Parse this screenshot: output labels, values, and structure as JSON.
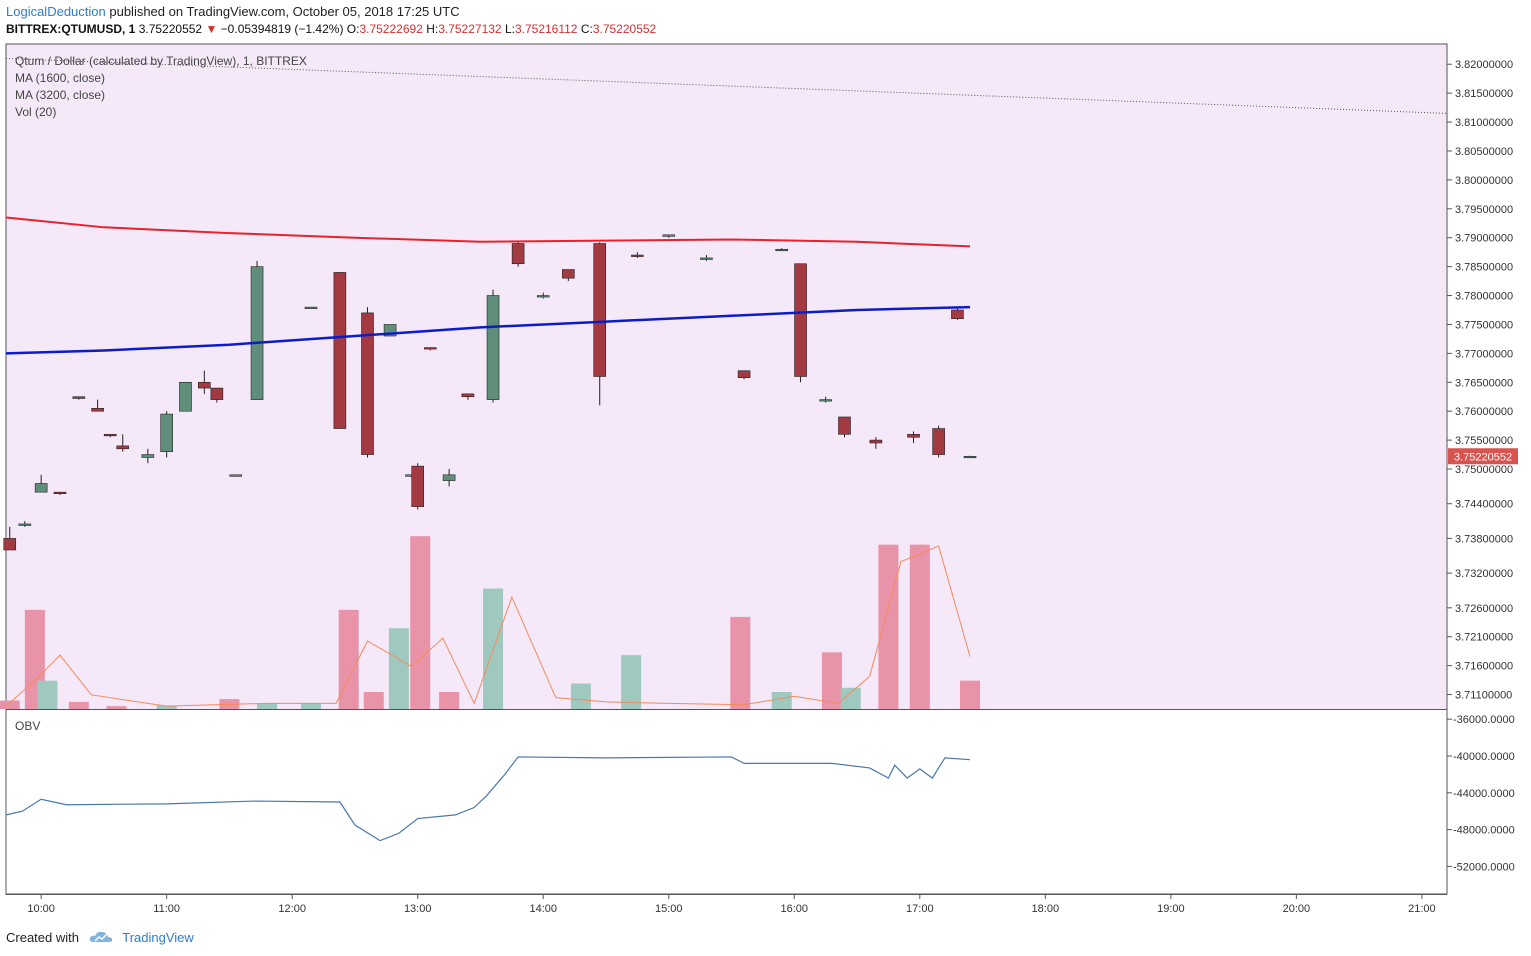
{
  "header": {
    "author": "LogicalDeduction",
    "published_text": "published on TradingView.com, October 05, 2018 17:25 UTC",
    "symbol": "BITTREX:QTUMUSD, 1",
    "last": "3.75220552",
    "change_arrow": "▼",
    "change": "−0.05394819 (−1.42%)",
    "o_label": "O:",
    "o_value": "3.75222692",
    "h_label": "H:",
    "h_value": "3.75227132",
    "l_label": "L:",
    "l_value": "3.75216112",
    "c_label": "C:",
    "c_value": "3.75220552"
  },
  "legend": {
    "title": "Qtum / Dollar (calculated by TradingView), 1, BITTREX",
    "ma1": "MA (1600, close)",
    "ma2": "MA (3200, close)",
    "vol": "Vol (20)",
    "obv": "OBV"
  },
  "footer": {
    "created_with": "Created with",
    "brand": "TradingView"
  },
  "colors": {
    "background_main": "#f4e8f9",
    "up_candle": "#5f8f7a",
    "down_candle": "#a33a42",
    "ma1600": "#0d1cc9",
    "ma3200": "#e8222a",
    "vol_up": "#9fc9be",
    "vol_down": "#e893a8",
    "vol_ma": "#f58a5c",
    "obv_line": "#4a77ad",
    "last_price_tag": "#d9534f"
  },
  "chart_data": {
    "type": "candlestick",
    "price_axis": {
      "ticks": [
        "3.82000000",
        "3.81500000",
        "3.81000000",
        "3.80500000",
        "3.80000000",
        "3.79500000",
        "3.79000000",
        "3.78500000",
        "3.78000000",
        "3.77500000",
        "3.77000000",
        "3.76500000",
        "3.76000000",
        "3.75500000",
        "3.75000000",
        "3.74400000",
        "3.73800000",
        "3.73200000",
        "3.72600000",
        "3.72100000",
        "3.71600000",
        "3.71100000"
      ],
      "last_price_label": "3.75220552",
      "ylim": [
        3.7085,
        3.8235
      ]
    },
    "obv_axis": {
      "ticks": [
        "-36000.0000",
        "-40000.0000",
        "-44000.0000",
        "-48000.0000",
        "-52000.0000"
      ],
      "ylim": [
        -55000,
        -35000
      ]
    },
    "time_axis": {
      "ticks": [
        "10:00",
        "11:00",
        "12:00",
        "13:00",
        "14:00",
        "15:00",
        "16:00",
        "17:00",
        "18:00",
        "19:00",
        "20:00",
        "21:00"
      ],
      "range_hours": [
        9.72,
        21.2
      ]
    },
    "candles": [
      {
        "t": 9.75,
        "o": 3.738,
        "h": 3.74,
        "l": 3.736,
        "c": 3.736
      },
      {
        "t": 9.87,
        "o": 3.7405,
        "h": 3.741,
        "l": 3.74,
        "c": 3.7405
      },
      {
        "t": 10.0,
        "o": 3.746,
        "h": 3.749,
        "l": 3.746,
        "c": 3.7475
      },
      {
        "t": 10.15,
        "o": 3.746,
        "h": 3.746,
        "l": 3.7455,
        "c": 3.7458
      },
      {
        "t": 10.3,
        "o": 3.7625,
        "h": 3.7625,
        "l": 3.762,
        "c": 3.7622
      },
      {
        "t": 10.45,
        "o": 3.7605,
        "h": 3.762,
        "l": 3.76,
        "c": 3.76
      },
      {
        "t": 10.55,
        "o": 3.756,
        "h": 3.756,
        "l": 3.7555,
        "c": 3.7558
      },
      {
        "t": 10.65,
        "o": 3.754,
        "h": 3.756,
        "l": 3.753,
        "c": 3.7535
      },
      {
        "t": 10.85,
        "o": 3.752,
        "h": 3.7535,
        "l": 3.751,
        "c": 3.7525
      },
      {
        "t": 11.0,
        "o": 3.753,
        "h": 3.76,
        "l": 3.752,
        "c": 3.7595
      },
      {
        "t": 11.15,
        "o": 3.76,
        "h": 3.765,
        "l": 3.76,
        "c": 3.765
      },
      {
        "t": 11.3,
        "o": 3.765,
        "h": 3.767,
        "l": 3.763,
        "c": 3.764
      },
      {
        "t": 11.4,
        "o": 3.764,
        "h": 3.764,
        "l": 3.7615,
        "c": 3.762
      },
      {
        "t": 11.55,
        "o": 3.749,
        "h": 3.749,
        "l": 3.7488,
        "c": 3.749
      },
      {
        "t": 11.72,
        "o": 3.762,
        "h": 3.786,
        "l": 3.762,
        "c": 3.785
      },
      {
        "t": 12.15,
        "o": 3.778,
        "h": 3.778,
        "l": 3.7778,
        "c": 3.778
      },
      {
        "t": 12.38,
        "o": 3.784,
        "h": 3.784,
        "l": 3.757,
        "c": 3.757
      },
      {
        "t": 12.6,
        "o": 3.777,
        "h": 3.778,
        "l": 3.752,
        "c": 3.7525
      },
      {
        "t": 12.78,
        "o": 3.773,
        "h": 3.775,
        "l": 3.773,
        "c": 3.775
      },
      {
        "t": 12.95,
        "o": 3.749,
        "h": 3.749,
        "l": 3.7488,
        "c": 3.749
      },
      {
        "t": 13.0,
        "o": 3.7505,
        "h": 3.751,
        "l": 3.743,
        "c": 3.7435
      },
      {
        "t": 13.1,
        "o": 3.771,
        "h": 3.771,
        "l": 3.7705,
        "c": 3.7708
      },
      {
        "t": 13.25,
        "o": 3.748,
        "h": 3.75,
        "l": 3.747,
        "c": 3.749
      },
      {
        "t": 13.4,
        "o": 3.763,
        "h": 3.763,
        "l": 3.762,
        "c": 3.7625
      },
      {
        "t": 13.6,
        "o": 3.762,
        "h": 3.781,
        "l": 3.7615,
        "c": 3.78
      },
      {
        "t": 13.8,
        "o": 3.789,
        "h": 3.7895,
        "l": 3.785,
        "c": 3.7855
      },
      {
        "t": 14.0,
        "o": 3.78,
        "h": 3.7805,
        "l": 3.7795,
        "c": 3.78
      },
      {
        "t": 14.2,
        "o": 3.7845,
        "h": 3.7845,
        "l": 3.7825,
        "c": 3.783
      },
      {
        "t": 14.45,
        "o": 3.789,
        "h": 3.7892,
        "l": 3.761,
        "c": 3.766
      },
      {
        "t": 14.75,
        "o": 3.787,
        "h": 3.7875,
        "l": 3.7865,
        "c": 3.7868
      },
      {
        "t": 15.0,
        "o": 3.7905,
        "h": 3.7905,
        "l": 3.79,
        "c": 3.7905
      },
      {
        "t": 15.3,
        "o": 3.7865,
        "h": 3.787,
        "l": 3.786,
        "c": 3.7865
      },
      {
        "t": 15.6,
        "o": 3.767,
        "h": 3.767,
        "l": 3.7655,
        "c": 3.7658
      },
      {
        "t": 15.9,
        "o": 3.788,
        "h": 3.7882,
        "l": 3.7878,
        "c": 3.788
      },
      {
        "t": 16.05,
        "o": 3.7855,
        "h": 3.7855,
        "l": 3.765,
        "c": 3.766
      },
      {
        "t": 16.25,
        "o": 3.762,
        "h": 3.7625,
        "l": 3.7615,
        "c": 3.762
      },
      {
        "t": 16.4,
        "o": 3.759,
        "h": 3.759,
        "l": 3.7555,
        "c": 3.756
      },
      {
        "t": 16.65,
        "o": 3.755,
        "h": 3.7555,
        "l": 3.7535,
        "c": 3.7545
      },
      {
        "t": 16.95,
        "o": 3.756,
        "h": 3.7565,
        "l": 3.7545,
        "c": 3.7555
      },
      {
        "t": 17.15,
        "o": 3.757,
        "h": 3.7575,
        "l": 3.752,
        "c": 3.7525
      },
      {
        "t": 17.3,
        "o": 3.7775,
        "h": 3.778,
        "l": 3.7758,
        "c": 3.776
      },
      {
        "t": 17.4,
        "o": 3.7522,
        "h": 3.7523,
        "l": 3.7522,
        "c": 3.7522
      }
    ],
    "ma1600": {
      "t": [
        9.72,
        10.5,
        11.5,
        12.5,
        13.5,
        14.5,
        15.5,
        16.5,
        17.4
      ],
      "v": [
        3.77,
        3.7705,
        3.7715,
        3.773,
        3.7745,
        3.7755,
        3.7765,
        3.7775,
        3.778
      ]
    },
    "ma3200": {
      "t": [
        9.72,
        10.5,
        11.5,
        12.5,
        13.5,
        14.5,
        15.5,
        16.5,
        17.4
      ],
      "v": [
        3.7935,
        3.7918,
        3.7908,
        3.79,
        3.7893,
        3.7895,
        3.7897,
        3.7893,
        3.7885
      ]
    },
    "trendline": {
      "t": [
        9.72,
        21.2
      ],
      "v": [
        3.821,
        3.8115
      ]
    },
    "volume": {
      "ylim": [
        0,
        1200
      ],
      "bars": [
        {
          "t": 9.75,
          "v": 60,
          "d": "down"
        },
        {
          "t": 9.95,
          "v": 700,
          "d": "down"
        },
        {
          "t": 10.05,
          "v": 200,
          "d": "up"
        },
        {
          "t": 10.3,
          "v": 50,
          "d": "down"
        },
        {
          "t": 10.6,
          "v": 20,
          "d": "down"
        },
        {
          "t": 11.0,
          "v": 25,
          "d": "up"
        },
        {
          "t": 11.5,
          "v": 70,
          "d": "down"
        },
        {
          "t": 11.8,
          "v": 40,
          "d": "up"
        },
        {
          "t": 12.15,
          "v": 40,
          "d": "up"
        },
        {
          "t": 12.45,
          "v": 700,
          "d": "down"
        },
        {
          "t": 12.65,
          "v": 120,
          "d": "down"
        },
        {
          "t": 12.85,
          "v": 570,
          "d": "up"
        },
        {
          "t": 13.02,
          "v": 1220,
          "d": "down"
        },
        {
          "t": 13.25,
          "v": 120,
          "d": "down"
        },
        {
          "t": 13.6,
          "v": 850,
          "d": "up"
        },
        {
          "t": 14.3,
          "v": 180,
          "d": "up"
        },
        {
          "t": 14.7,
          "v": 380,
          "d": "up"
        },
        {
          "t": 15.57,
          "v": 650,
          "d": "down"
        },
        {
          "t": 15.9,
          "v": 120,
          "d": "up"
        },
        {
          "t": 16.3,
          "v": 400,
          "d": "down"
        },
        {
          "t": 16.45,
          "v": 150,
          "d": "up"
        },
        {
          "t": 16.75,
          "v": 1160,
          "d": "down"
        },
        {
          "t": 17.0,
          "v": 1160,
          "d": "down"
        },
        {
          "t": 17.4,
          "v": 200,
          "d": "down"
        }
      ],
      "ma": {
        "t": [
          9.72,
          9.95,
          10.15,
          10.4,
          11.0,
          11.8,
          12.35,
          12.6,
          12.95,
          13.2,
          13.45,
          13.75,
          14.1,
          14.5,
          15.0,
          15.6,
          16.0,
          16.35,
          16.6,
          16.85,
          17.15,
          17.4
        ],
        "v": [
          20,
          200,
          380,
          100,
          20,
          40,
          40,
          480,
          300,
          500,
          40,
          790,
          80,
          50,
          40,
          30,
          90,
          40,
          230,
          1040,
          1150,
          370
        ]
      }
    },
    "obv": {
      "t": [
        9.72,
        9.85,
        10.0,
        10.2,
        11.0,
        11.7,
        12.38,
        12.5,
        12.7,
        12.85,
        13.0,
        13.3,
        13.45,
        13.55,
        13.7,
        13.8,
        14.5,
        15.5,
        15.6,
        16.3,
        16.6,
        16.75,
        16.8,
        16.9,
        17.0,
        17.1,
        17.2,
        17.4
      ],
      "v": [
        -46400,
        -46000,
        -44700,
        -45300,
        -45200,
        -44900,
        -45000,
        -47500,
        -49200,
        -48400,
        -46800,
        -46400,
        -45600,
        -44300,
        -41900,
        -40100,
        -40200,
        -40100,
        -40800,
        -40800,
        -41300,
        -42400,
        -41000,
        -42400,
        -41400,
        -42400,
        -40200,
        -40400
      ]
    }
  }
}
